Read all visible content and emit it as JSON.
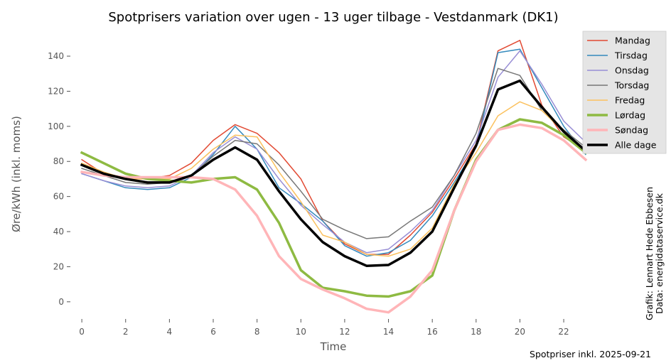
{
  "chart_data": {
    "type": "line",
    "title": "Spotprisers variation over ugen - 13 uger tilbage - Vestdanmark (DK1)",
    "xlabel": "Time",
    "ylabel": "Øre/kWh (inkl. moms)",
    "xlim": [
      -0.75,
      23.75
    ],
    "ylim": [
      -11,
      155
    ],
    "xticks": [
      0,
      2,
      4,
      6,
      8,
      10,
      12,
      14,
      16,
      18,
      20,
      22
    ],
    "yticks": [
      0,
      20,
      40,
      60,
      80,
      100,
      120,
      140
    ],
    "legend_position": "top-right",
    "x": [
      0,
      1,
      2,
      3,
      4,
      5,
      6,
      7,
      8,
      9,
      10,
      11,
      12,
      13,
      14,
      15,
      16,
      17,
      18,
      19,
      20,
      21,
      22,
      23
    ],
    "series": [
      {
        "name": "Mandag",
        "color": "#E24A33",
        "width": 1.5,
        "values": [
          81,
          73,
          71,
          70,
          72,
          79,
          92,
          101,
          96,
          85,
          70,
          46,
          33,
          27,
          27,
          38,
          51,
          70,
          90,
          143,
          149,
          112,
          94,
          86
        ]
      },
      {
        "name": "Tirsdag",
        "color": "#348ABD",
        "width": 1.5,
        "values": [
          73,
          69,
          65,
          64,
          65,
          71,
          84,
          100,
          87,
          65,
          56,
          46,
          32,
          26,
          28,
          35,
          49,
          68,
          88,
          142,
          144,
          122,
          100,
          84
        ]
      },
      {
        "name": "Onsdag",
        "color": "#988ED5",
        "width": 1.5,
        "values": [
          73,
          69,
          66,
          65,
          66,
          72,
          85,
          94,
          87,
          70,
          55,
          44,
          34,
          28,
          30,
          40,
          52,
          72,
          92,
          128,
          143,
          124,
          103,
          91
        ]
      },
      {
        "name": "Torsdag",
        "color": "#777777",
        "width": 1.5,
        "values": [
          76,
          72,
          68,
          67,
          68,
          72,
          83,
          92,
          90,
          78,
          63,
          47,
          41,
          36,
          37,
          46,
          54,
          72,
          96,
          133,
          129,
          109,
          98,
          88
        ]
      },
      {
        "name": "Fredag",
        "color": "#FBC15E",
        "width": 1.5,
        "values": [
          79,
          74,
          70,
          70,
          70,
          76,
          87,
          95,
          94,
          74,
          57,
          38,
          34,
          27,
          26,
          30,
          42,
          67,
          85,
          106,
          114,
          109,
          97,
          86
        ]
      },
      {
        "name": "Lørdag",
        "color": "#8EBA42",
        "width": 3.5,
        "values": [
          85,
          79,
          73,
          70,
          69,
          68,
          70,
          71,
          64,
          45,
          18,
          8,
          6,
          3.5,
          3,
          6,
          15,
          52,
          81,
          98,
          104,
          102,
          95,
          85
        ]
      },
      {
        "name": "Søndag",
        "color": "#FFB5B8",
        "width": 3.5,
        "values": [
          74,
          72,
          71,
          71,
          71,
          71,
          70,
          64,
          49,
          26,
          13,
          7,
          2,
          -4,
          -6,
          3,
          18,
          52,
          80,
          98,
          101,
          99,
          92,
          81
        ]
      },
      {
        "name": "Alle dage",
        "color": "#000000",
        "width": 3.5,
        "values": [
          78,
          73,
          70,
          68,
          68,
          72,
          81,
          88,
          81,
          63,
          47,
          34,
          26,
          20.5,
          21,
          28,
          40,
          65,
          89,
          121,
          126,
          111,
          97,
          86
        ]
      }
    ],
    "credit_line1": "Grafik: Lennart Hede Ebbesen",
    "credit_line2": "Data: energidataservice.dk",
    "footer": "Spotpriser inkl. 2025-09-21"
  }
}
